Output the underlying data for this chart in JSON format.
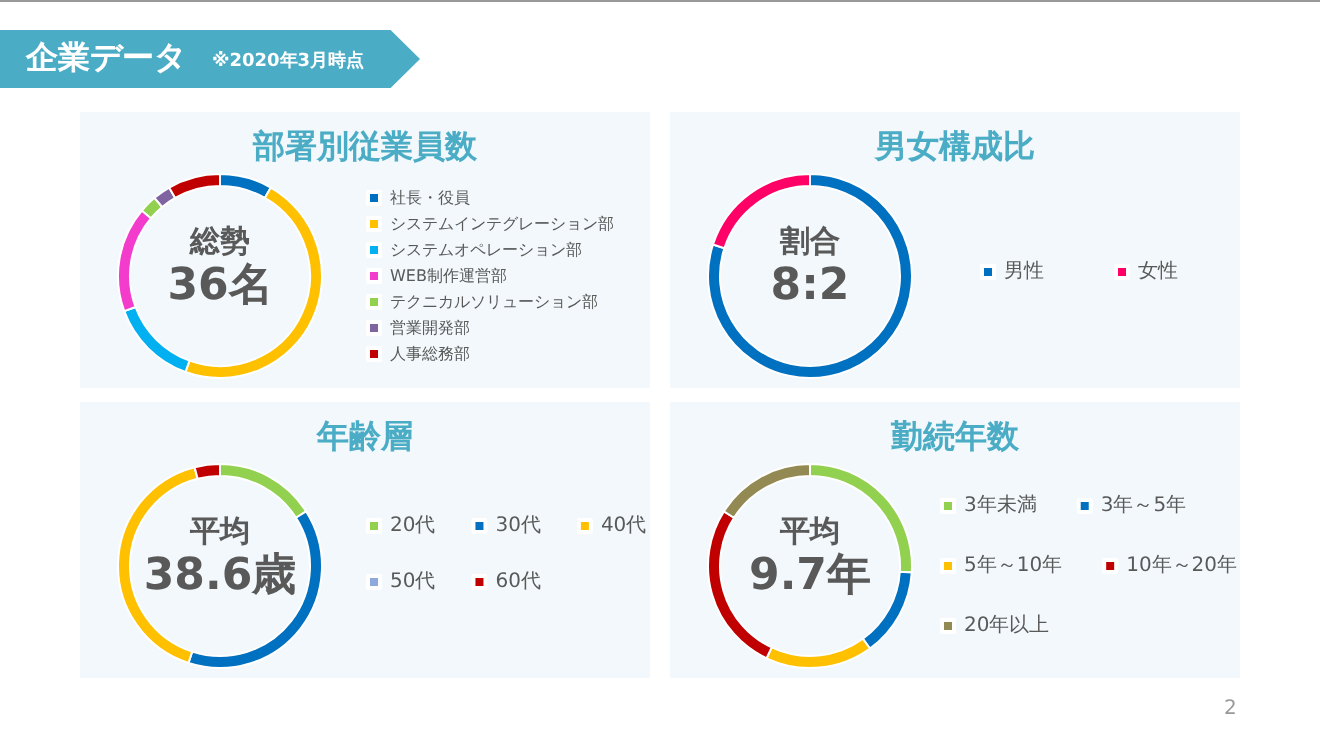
{
  "chart_data": [
    {
      "type": "donut",
      "title": "部署別従業員数",
      "categories": [
        "社長・役員",
        "システムインテグレーション部",
        "システムオペレーション部",
        "WEB制作運営部",
        "テクニカルソリューション部",
        "営業開発部",
        "人事総務部"
      ],
      "values": [
        8.3,
        47.2,
        13.9,
        16.7,
        2.8,
        2.8,
        8.3
      ],
      "colors": [
        "#0070c0",
        "#ffc000",
        "#00b0f0",
        "#f43ccc",
        "#92d050",
        "#8064a2",
        "#c00000"
      ],
      "legend": "right",
      "annotations": [
        "総勢",
        "36名",
        "企業データ",
        "※2020年3月時点",
        "2"
      ]
    },
    {
      "type": "donut",
      "title": "男女構成比",
      "categories": [
        "男性",
        "女性"
      ],
      "values": [
        80,
        20
      ],
      "colors": [
        "#0070c0",
        "#ff0066"
      ],
      "legend": "right",
      "annotations": [
        "割合",
        "8:2"
      ]
    },
    {
      "type": "donut",
      "title": "年齢層",
      "categories": [
        "20代",
        "30代",
        "40代",
        "50代",
        "60代"
      ],
      "values": [
        16,
        39,
        41,
        0,
        4
      ],
      "colors": [
        "#92d050",
        "#0070c0",
        "#ffc000",
        "#8ea9db",
        "#c00000"
      ],
      "legend": "right",
      "annotations": [
        "平均",
        "38.6歳"
      ]
    },
    {
      "type": "donut",
      "title": "勤続年数",
      "categories": [
        "3年未満",
        "3年～5年",
        "5年～10年",
        "10年～20年",
        "20年以上"
      ],
      "values": [
        26,
        14,
        17,
        27,
        16
      ],
      "colors": [
        "#92d050",
        "#0070c0",
        "#ffc000",
        "#c00000",
        "#938953"
      ],
      "legend": "right",
      "annotations": [
        "平均",
        "9.7年"
      ]
    }
  ]
}
